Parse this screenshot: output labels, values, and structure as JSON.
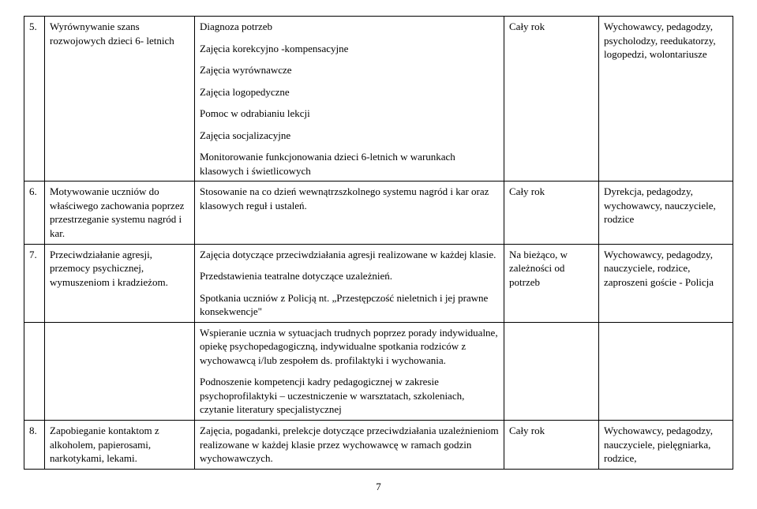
{
  "rows": [
    {
      "num": "5.",
      "task": "Wyrównywanie szans rozwojowych dzieci 6- letnich",
      "desc_parts": [
        "Diagnoza potrzeb",
        "Zajęcia korekcyjno -kompensacyjne",
        "Zajęcia wyrównawcze",
        "Zajęcia logopedyczne",
        "Pomoc w odrabianiu lekcji",
        "Zajęcia socjalizacyjne",
        "Monitorowanie funkcjonowania dzieci 6-letnich w warunkach klasowych i świetlicowych"
      ],
      "when": "Cały rok",
      "who": "Wychowawcy, pedagodzy, psycholodzy, reedukatorzy, logopedzi, wolontariusze"
    },
    {
      "num": "6.",
      "task": "Motywowanie uczniów do właściwego zachowania poprzez przestrzeganie systemu nagród i kar.",
      "desc_parts": [
        "Stosowanie na co dzień wewnątrzszkolnego systemu nagród i kar oraz klasowych reguł i ustaleń."
      ],
      "when": "Cały rok",
      "who": "Dyrekcja, pedagodzy, wychowawcy, nauczyciele, rodzice"
    },
    {
      "num": "7.",
      "task": "Przeciwdziałanie agresji, przemocy psychicznej, wymuszeniom i kradzieżom.",
      "desc_parts": [
        "Zajęcia dotyczące przeciwdziałania agresji realizowane w każdej klasie.",
        "Przedstawienia teatralne dotyczące uzależnień.",
        "Spotkania uczniów z Policją nt. „Przestępczość nieletnich i jej prawne konsekwencje\""
      ],
      "when": "Na bieżąco, w zależności od potrzeb",
      "who": "Wychowawcy, pedagodzy, nauczyciele, rodzice, zaproszeni goście - Policja"
    },
    {
      "num": "",
      "task": "",
      "desc_parts": [
        "Wspieranie ucznia w sytuacjach trudnych poprzez porady indywidualne, opiekę psychopedagogiczną, indywidualne spotkania rodziców z wychowawcą i/lub zespołem ds. profilaktyki i wychowania.",
        "Podnoszenie kompetencji kadry pedagogicznej w zakresie psychoprofilaktyki – uczestniczenie w warsztatach, szkoleniach, czytanie literatury specjalistycznej"
      ],
      "when": "",
      "who": ""
    },
    {
      "num": "8.",
      "task": "Zapobieganie kontaktom z alkoholem, papierosami, narkotykami, lekami.",
      "desc_parts": [
        "Zajęcia, pogadanki, prelekcje dotyczące przeciwdziałania uzależnieniom realizowane w każdej klasie przez wychowawcę w ramach godzin wychowawczych."
      ],
      "when": "Cały rok",
      "who": "Wychowawcy, pedagodzy, nauczyciele, pielęgniarka, rodzice,"
    }
  ],
  "page_number": "7",
  "colors": {
    "border": "#000000",
    "background": "#ffffff",
    "text": "#000000"
  },
  "font": {
    "family": "Times New Roman",
    "size_pt": 10
  }
}
